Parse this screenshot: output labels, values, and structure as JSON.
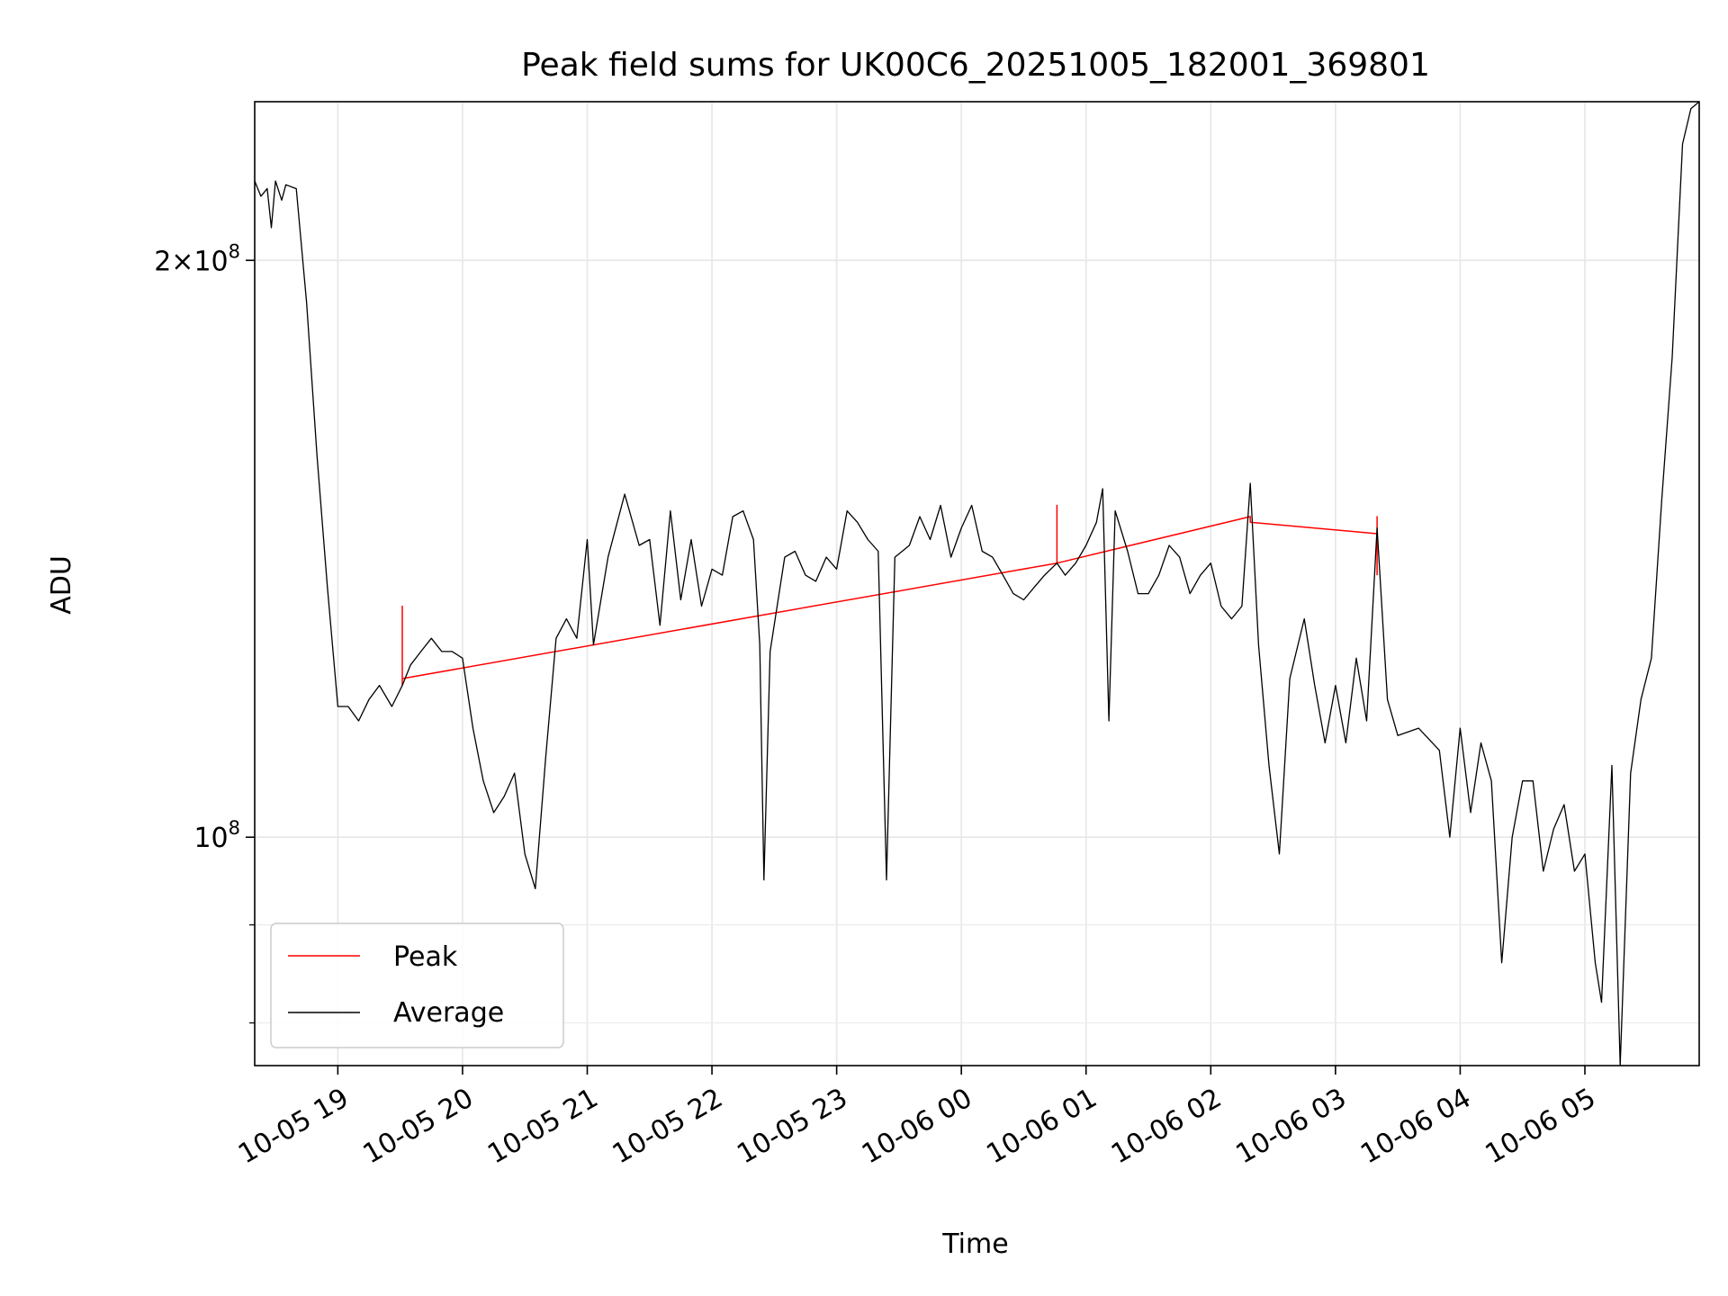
{
  "chart_data": {
    "type": "line",
    "title": "Peak field sums for UK00C6_20251005_182001_369801",
    "xlabel": "Time",
    "ylabel": "ADU",
    "yscale": "log",
    "xlim": [
      "2025-10-05T18:20",
      "2025-10-06T05:55"
    ],
    "ylim": [
      76000000,
      242000000
    ],
    "xticks": [
      {
        "t": "2025-10-05T19:00",
        "label": "10-05 19"
      },
      {
        "t": "2025-10-05T20:00",
        "label": "10-05 20"
      },
      {
        "t": "2025-10-05T21:00",
        "label": "10-05 21"
      },
      {
        "t": "2025-10-05T22:00",
        "label": "10-05 22"
      },
      {
        "t": "2025-10-05T23:00",
        "label": "10-05 23"
      },
      {
        "t": "2025-10-06T00:00",
        "label": "10-06 00"
      },
      {
        "t": "2025-10-06T01:00",
        "label": "10-06 01"
      },
      {
        "t": "2025-10-06T02:00",
        "label": "10-06 02"
      },
      {
        "t": "2025-10-06T03:00",
        "label": "10-06 03"
      },
      {
        "t": "2025-10-06T04:00",
        "label": "10-06 04"
      },
      {
        "t": "2025-10-06T05:00",
        "label": "10-06 05"
      }
    ],
    "yticks": [
      {
        "value": 100000000,
        "label": "10^8"
      },
      {
        "value": 200000000,
        "label": "2×10^8"
      }
    ],
    "yminor": [
      80000000,
      90000000
    ],
    "grid": true,
    "legend_position": "lower-left",
    "series": [
      {
        "name": "Peak",
        "color": "#ff0000",
        "points": [
          [
            "2025-10-05T19:31",
            120000000
          ],
          [
            "2025-10-05T19:31",
            132000000
          ],
          [
            "2025-10-05T19:31",
            121000000
          ],
          [
            "2025-10-06T00:46",
            139000000
          ],
          [
            "2025-10-06T00:46",
            149000000
          ],
          [
            "2025-10-06T00:46",
            139000000
          ],
          [
            "2025-10-06T02:19",
            147000000
          ],
          [
            "2025-10-06T02:19",
            146000000
          ],
          [
            "2025-10-06T03:20",
            144000000
          ],
          [
            "2025-10-06T03:20",
            147000000
          ],
          [
            "2025-10-06T03:20",
            137000000
          ]
        ]
      },
      {
        "name": "Average",
        "color": "#000000",
        "points": [
          [
            "2025-10-05T18:20",
            220000000
          ],
          [
            "2025-10-05T18:23",
            216000000
          ],
          [
            "2025-10-05T18:26",
            218000000
          ],
          [
            "2025-10-05T18:28",
            208000000
          ],
          [
            "2025-10-05T18:30",
            220000000
          ],
          [
            "2025-10-05T18:33",
            215000000
          ],
          [
            "2025-10-05T18:35",
            219000000
          ],
          [
            "2025-10-05T18:40",
            218000000
          ],
          [
            "2025-10-05T18:45",
            190000000
          ],
          [
            "2025-10-05T18:50",
            158000000
          ],
          [
            "2025-10-05T18:55",
            135000000
          ],
          [
            "2025-10-05T19:00",
            117000000
          ],
          [
            "2025-10-05T19:05",
            117000000
          ],
          [
            "2025-10-05T19:10",
            115000000
          ],
          [
            "2025-10-05T19:15",
            118000000
          ],
          [
            "2025-10-05T19:20",
            120000000
          ],
          [
            "2025-10-05T19:26",
            117000000
          ],
          [
            "2025-10-05T19:31",
            120000000
          ],
          [
            "2025-10-05T19:35",
            123000000
          ],
          [
            "2025-10-05T19:40",
            125000000
          ],
          [
            "2025-10-05T19:45",
            127000000
          ],
          [
            "2025-10-05T19:50",
            125000000
          ],
          [
            "2025-10-05T19:55",
            125000000
          ],
          [
            "2025-10-05T20:00",
            124000000
          ],
          [
            "2025-10-05T20:05",
            114000000
          ],
          [
            "2025-10-05T20:10",
            107000000
          ],
          [
            "2025-10-05T20:15",
            103000000
          ],
          [
            "2025-10-05T20:20",
            105000000
          ],
          [
            "2025-10-05T20:25",
            108000000
          ],
          [
            "2025-10-05T20:30",
            98000000
          ],
          [
            "2025-10-05T20:35",
            94000000
          ],
          [
            "2025-10-05T20:40",
            110000000
          ],
          [
            "2025-10-05T20:45",
            127000000
          ],
          [
            "2025-10-05T20:50",
            130000000
          ],
          [
            "2025-10-05T20:55",
            127000000
          ],
          [
            "2025-10-05T21:00",
            143000000
          ],
          [
            "2025-10-05T21:03",
            126000000
          ],
          [
            "2025-10-05T21:10",
            140000000
          ],
          [
            "2025-10-05T21:18",
            151000000
          ],
          [
            "2025-10-05T21:25",
            142000000
          ],
          [
            "2025-10-05T21:30",
            143000000
          ],
          [
            "2025-10-05T21:35",
            129000000
          ],
          [
            "2025-10-05T21:40",
            148000000
          ],
          [
            "2025-10-05T21:45",
            133000000
          ],
          [
            "2025-10-05T21:50",
            143000000
          ],
          [
            "2025-10-05T21:55",
            132000000
          ],
          [
            "2025-10-05T22:00",
            138000000
          ],
          [
            "2025-10-05T22:05",
            137000000
          ],
          [
            "2025-10-05T22:10",
            147000000
          ],
          [
            "2025-10-05T22:15",
            148000000
          ],
          [
            "2025-10-05T22:20",
            143000000
          ],
          [
            "2025-10-05T22:23",
            126000000
          ],
          [
            "2025-10-05T22:25",
            95000000
          ],
          [
            "2025-10-05T22:28",
            125000000
          ],
          [
            "2025-10-05T22:35",
            140000000
          ],
          [
            "2025-10-05T22:40",
            141000000
          ],
          [
            "2025-10-05T22:45",
            137000000
          ],
          [
            "2025-10-05T22:50",
            136000000
          ],
          [
            "2025-10-05T22:55",
            140000000
          ],
          [
            "2025-10-05T23:00",
            138000000
          ],
          [
            "2025-10-05T23:05",
            148000000
          ],
          [
            "2025-10-05T23:10",
            146000000
          ],
          [
            "2025-10-05T23:15",
            143000000
          ],
          [
            "2025-10-05T23:20",
            141000000
          ],
          [
            "2025-10-05T23:24",
            95000000
          ],
          [
            "2025-10-05T23:28",
            140000000
          ],
          [
            "2025-10-05T23:35",
            142000000
          ],
          [
            "2025-10-05T23:40",
            147000000
          ],
          [
            "2025-10-05T23:45",
            143000000
          ],
          [
            "2025-10-05T23:50",
            149000000
          ],
          [
            "2025-10-05T23:55",
            140000000
          ],
          [
            "2025-10-06T00:00",
            145000000
          ],
          [
            "2025-10-06T00:05",
            149000000
          ],
          [
            "2025-10-06T00:10",
            141000000
          ],
          [
            "2025-10-06T00:15",
            140000000
          ],
          [
            "2025-10-06T00:20",
            137000000
          ],
          [
            "2025-10-06T00:25",
            134000000
          ],
          [
            "2025-10-06T00:30",
            133000000
          ],
          [
            "2025-10-06T00:35",
            135000000
          ],
          [
            "2025-10-06T00:40",
            137000000
          ],
          [
            "2025-10-06T00:46",
            139000000
          ],
          [
            "2025-10-06T00:50",
            137000000
          ],
          [
            "2025-10-06T00:55",
            139000000
          ],
          [
            "2025-10-06T01:00",
            142000000
          ],
          [
            "2025-10-06T01:05",
            146000000
          ],
          [
            "2025-10-06T01:08",
            152000000
          ],
          [
            "2025-10-06T01:11",
            115000000
          ],
          [
            "2025-10-06T01:14",
            148000000
          ],
          [
            "2025-10-06T01:20",
            141000000
          ],
          [
            "2025-10-06T01:25",
            134000000
          ],
          [
            "2025-10-06T01:30",
            134000000
          ],
          [
            "2025-10-06T01:35",
            137000000
          ],
          [
            "2025-10-06T01:40",
            142000000
          ],
          [
            "2025-10-06T01:45",
            140000000
          ],
          [
            "2025-10-06T01:50",
            134000000
          ],
          [
            "2025-10-06T01:55",
            137000000
          ],
          [
            "2025-10-06T02:00",
            139000000
          ],
          [
            "2025-10-06T02:05",
            132000000
          ],
          [
            "2025-10-06T02:10",
            130000000
          ],
          [
            "2025-10-06T02:15",
            132000000
          ],
          [
            "2025-10-06T02:19",
            153000000
          ],
          [
            "2025-10-06T02:23",
            126000000
          ],
          [
            "2025-10-06T02:28",
            109000000
          ],
          [
            "2025-10-06T02:33",
            98000000
          ],
          [
            "2025-10-06T02:38",
            121000000
          ],
          [
            "2025-10-06T02:45",
            130000000
          ],
          [
            "2025-10-06T02:50",
            120000000
          ],
          [
            "2025-10-06T02:55",
            112000000
          ],
          [
            "2025-10-06T03:00",
            120000000
          ],
          [
            "2025-10-06T03:05",
            112000000
          ],
          [
            "2025-10-06T03:10",
            124000000
          ],
          [
            "2025-10-06T03:15",
            115000000
          ],
          [
            "2025-10-06T03:20",
            145000000
          ],
          [
            "2025-10-06T03:25",
            118000000
          ],
          [
            "2025-10-06T03:30",
            113000000
          ],
          [
            "2025-10-06T03:40",
            114000000
          ],
          [
            "2025-10-06T03:50",
            111000000
          ],
          [
            "2025-10-06T03:55",
            100000000
          ],
          [
            "2025-10-06T04:00",
            114000000
          ],
          [
            "2025-10-06T04:05",
            103000000
          ],
          [
            "2025-10-06T04:10",
            112000000
          ],
          [
            "2025-10-06T04:15",
            107000000
          ],
          [
            "2025-10-06T04:20",
            86000000
          ],
          [
            "2025-10-06T04:25",
            100000000
          ],
          [
            "2025-10-06T04:30",
            107000000
          ],
          [
            "2025-10-06T04:35",
            107000000
          ],
          [
            "2025-10-06T04:40",
            96000000
          ],
          [
            "2025-10-06T04:45",
            101000000
          ],
          [
            "2025-10-06T04:50",
            104000000
          ],
          [
            "2025-10-06T04:55",
            96000000
          ],
          [
            "2025-10-06T05:00",
            98000000
          ],
          [
            "2025-10-06T05:05",
            86000000
          ],
          [
            "2025-10-06T05:08",
            82000000
          ],
          [
            "2025-10-06T05:13",
            109000000
          ],
          [
            "2025-10-06T05:17",
            76000000
          ],
          [
            "2025-10-06T05:22",
            108000000
          ],
          [
            "2025-10-06T05:27",
            118000000
          ],
          [
            "2025-10-06T05:32",
            124000000
          ],
          [
            "2025-10-06T05:37",
            150000000
          ],
          [
            "2025-10-06T05:42",
            178000000
          ],
          [
            "2025-10-06T05:47",
            230000000
          ],
          [
            "2025-10-06T05:51",
            240000000
          ],
          [
            "2025-10-06T05:55",
            242000000
          ]
        ]
      }
    ]
  }
}
